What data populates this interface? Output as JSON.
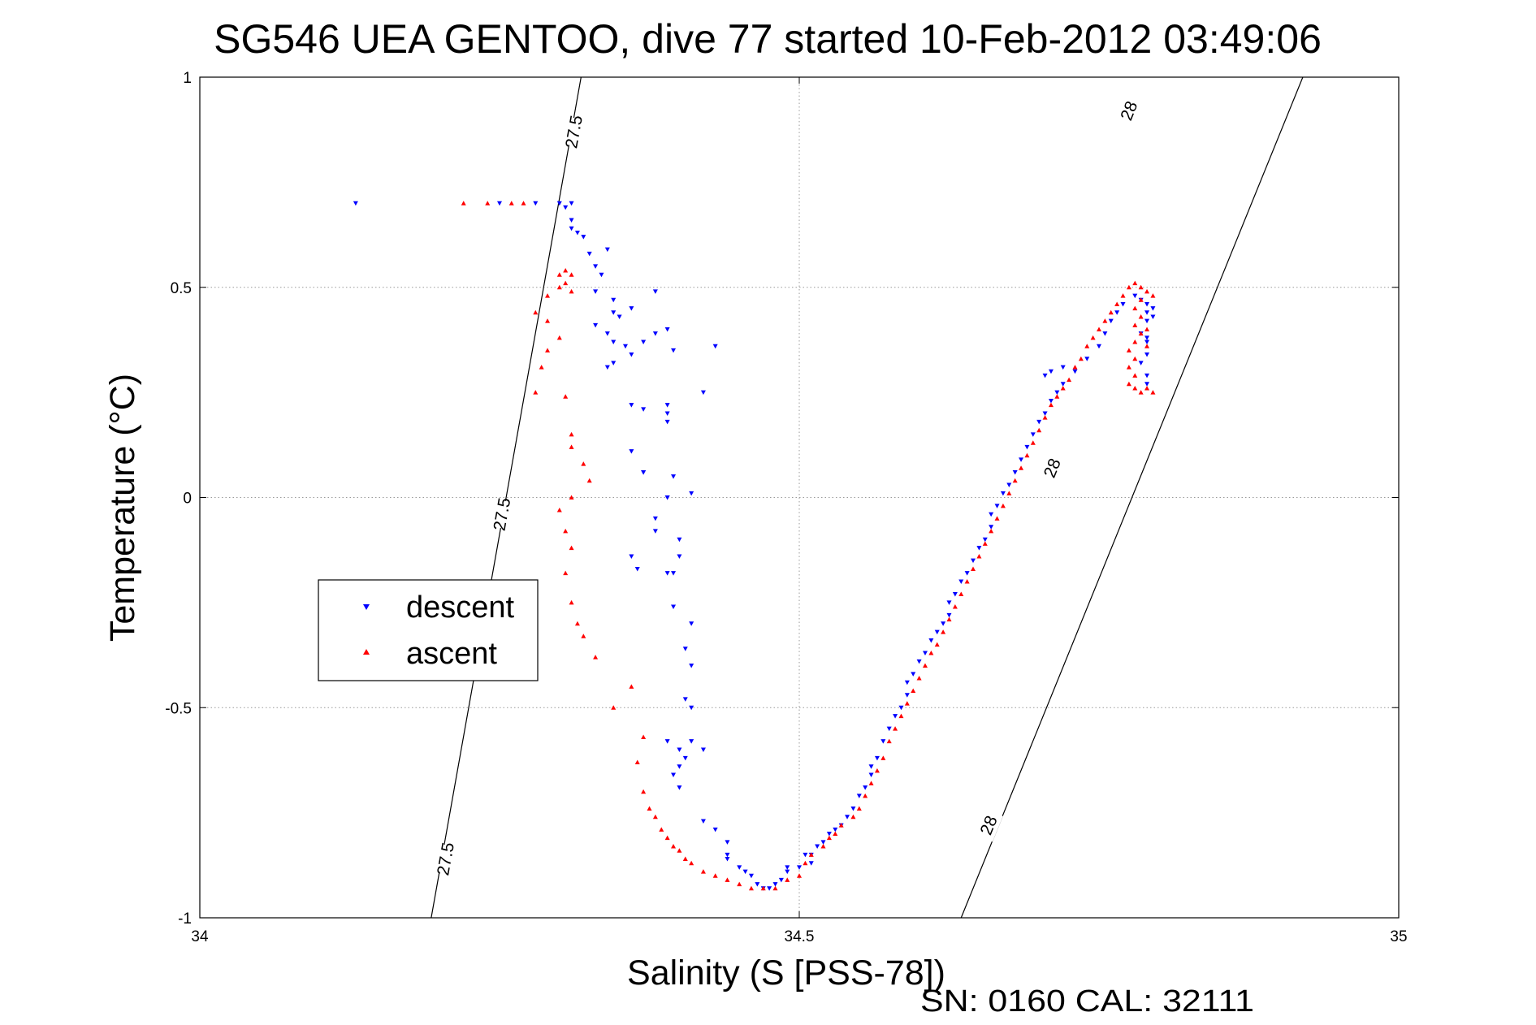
{
  "chart_data": {
    "type": "scatter",
    "title": "SG546 UEA GENTOO, dive 77 started 10-Feb-2012 03:49:06",
    "xlabel": "Salinity (S [PSS-78])",
    "ylabel": "Temperature (°C)",
    "xlim": [
      34,
      35
    ],
    "ylim": [
      -1,
      1
    ],
    "xticks": [
      34,
      34.5,
      35
    ],
    "xtick_labels": [
      "34",
      "34.5",
      "35"
    ],
    "yticks": [
      -1,
      -0.5,
      0,
      0.5,
      1
    ],
    "ytick_labels": [
      "-1",
      "-0.5",
      "0",
      "0.5",
      "1"
    ],
    "grid": true,
    "legend": {
      "position": "left-middle",
      "entries": [
        "descent",
        "ascent"
      ]
    },
    "footer": "SN: 0160  CAL: 32111",
    "isopycnals": [
      {
        "label": "27.5",
        "s_bottom": 34.193,
        "s_top": 34.318,
        "label_positions": [
          [
            34.205,
            -0.86
          ],
          [
            34.252,
            -0.04
          ],
          [
            34.312,
            0.87
          ]
        ]
      },
      {
        "label": "28",
        "s_bottom": 34.635,
        "s_top": 34.92,
        "label_positions": [
          [
            34.658,
            -0.78
          ],
          [
            34.711,
            0.07
          ],
          [
            34.775,
            0.92
          ]
        ]
      }
    ],
    "series": [
      {
        "name": "descent",
        "color": "#0000ff",
        "marker": "triangle-down",
        "points": [
          [
            34.13,
            0.7
          ],
          [
            34.25,
            0.7
          ],
          [
            34.28,
            0.7
          ],
          [
            34.3,
            0.7
          ],
          [
            34.31,
            0.7
          ],
          [
            34.305,
            0.69
          ],
          [
            34.31,
            0.66
          ],
          [
            34.31,
            0.64
          ],
          [
            34.32,
            0.62
          ],
          [
            34.315,
            0.63
          ],
          [
            34.325,
            0.58
          ],
          [
            34.34,
            0.59
          ],
          [
            34.33,
            0.55
          ],
          [
            34.335,
            0.53
          ],
          [
            34.33,
            0.49
          ],
          [
            34.345,
            0.47
          ],
          [
            34.345,
            0.44
          ],
          [
            34.35,
            0.43
          ],
          [
            34.36,
            0.45
          ],
          [
            34.38,
            0.49
          ],
          [
            34.33,
            0.41
          ],
          [
            34.34,
            0.39
          ],
          [
            34.345,
            0.37
          ],
          [
            34.355,
            0.36
          ],
          [
            34.36,
            0.34
          ],
          [
            34.345,
            0.32
          ],
          [
            34.34,
            0.31
          ],
          [
            34.37,
            0.37
          ],
          [
            34.38,
            0.39
          ],
          [
            34.39,
            0.4
          ],
          [
            34.395,
            0.35
          ],
          [
            34.36,
            0.22
          ],
          [
            34.37,
            0.21
          ],
          [
            34.39,
            0.22
          ],
          [
            34.39,
            0.2
          ],
          [
            34.39,
            0.18
          ],
          [
            34.36,
            0.11
          ],
          [
            34.37,
            0.06
          ],
          [
            34.43,
            0.36
          ],
          [
            34.42,
            0.25
          ],
          [
            34.37,
            0.06
          ],
          [
            34.395,
            0.05
          ],
          [
            34.39,
            0.0
          ],
          [
            34.41,
            0.01
          ],
          [
            34.39,
            0.0
          ],
          [
            34.38,
            -0.05
          ],
          [
            34.38,
            -0.08
          ],
          [
            34.4,
            -0.1
          ],
          [
            34.4,
            -0.14
          ],
          [
            34.39,
            -0.18
          ],
          [
            34.36,
            -0.14
          ],
          [
            34.365,
            -0.17
          ],
          [
            34.395,
            -0.18
          ],
          [
            34.395,
            -0.26
          ],
          [
            34.41,
            -0.3
          ],
          [
            34.405,
            -0.36
          ],
          [
            34.41,
            -0.4
          ],
          [
            34.405,
            -0.48
          ],
          [
            34.41,
            -0.5
          ],
          [
            34.39,
            -0.58
          ],
          [
            34.4,
            -0.6
          ],
          [
            34.41,
            -0.58
          ],
          [
            34.42,
            -0.6
          ],
          [
            34.405,
            -0.62
          ],
          [
            34.4,
            -0.64
          ],
          [
            34.395,
            -0.66
          ],
          [
            34.4,
            -0.69
          ],
          [
            34.42,
            -0.77
          ],
          [
            34.43,
            -0.79
          ],
          [
            34.44,
            -0.82
          ],
          [
            34.44,
            -0.85
          ],
          [
            34.44,
            -0.86
          ],
          [
            34.45,
            -0.88
          ],
          [
            34.455,
            -0.89
          ],
          [
            34.46,
            -0.9
          ],
          [
            34.465,
            -0.92
          ],
          [
            34.47,
            -0.93
          ],
          [
            34.475,
            -0.93
          ],
          [
            34.48,
            -0.92
          ],
          [
            34.485,
            -0.91
          ],
          [
            34.49,
            -0.89
          ],
          [
            34.49,
            -0.88
          ],
          [
            34.5,
            -0.88
          ],
          [
            34.51,
            -0.87
          ],
          [
            34.505,
            -0.85
          ],
          [
            34.51,
            -0.85
          ],
          [
            34.515,
            -0.83
          ],
          [
            34.52,
            -0.82
          ],
          [
            34.525,
            -0.8
          ],
          [
            34.53,
            -0.79
          ],
          [
            34.535,
            -0.78
          ],
          [
            34.54,
            -0.76
          ],
          [
            34.545,
            -0.74
          ],
          [
            34.55,
            -0.71
          ],
          [
            34.555,
            -0.69
          ],
          [
            34.56,
            -0.66
          ],
          [
            34.56,
            -0.64
          ],
          [
            34.565,
            -0.62
          ],
          [
            34.57,
            -0.58
          ],
          [
            34.575,
            -0.55
          ],
          [
            34.58,
            -0.52
          ],
          [
            34.585,
            -0.5
          ],
          [
            34.59,
            -0.47
          ],
          [
            34.59,
            -0.44
          ],
          [
            34.595,
            -0.42
          ],
          [
            34.6,
            -0.39
          ],
          [
            34.605,
            -0.37
          ],
          [
            34.61,
            -0.34
          ],
          [
            34.615,
            -0.32
          ],
          [
            34.62,
            -0.3
          ],
          [
            34.625,
            -0.28
          ],
          [
            34.625,
            -0.25
          ],
          [
            34.63,
            -0.23
          ],
          [
            34.635,
            -0.2
          ],
          [
            34.64,
            -0.18
          ],
          [
            34.645,
            -0.15
          ],
          [
            34.65,
            -0.12
          ],
          [
            34.655,
            -0.1
          ],
          [
            34.66,
            -0.07
          ],
          [
            34.66,
            -0.04
          ],
          [
            34.665,
            -0.02
          ],
          [
            34.67,
            0.01
          ],
          [
            34.675,
            0.03
          ],
          [
            34.68,
            0.06
          ],
          [
            34.685,
            0.09
          ],
          [
            34.69,
            0.12
          ],
          [
            34.695,
            0.15
          ],
          [
            34.7,
            0.18
          ],
          [
            34.705,
            0.2
          ],
          [
            34.71,
            0.23
          ],
          [
            34.715,
            0.25
          ],
          [
            34.72,
            0.27
          ],
          [
            34.705,
            0.29
          ],
          [
            34.71,
            0.3
          ],
          [
            34.72,
            0.31
          ],
          [
            34.73,
            0.3
          ],
          [
            34.74,
            0.33
          ],
          [
            34.75,
            0.36
          ],
          [
            34.755,
            0.39
          ],
          [
            34.76,
            0.42
          ],
          [
            34.765,
            0.44
          ],
          [
            34.77,
            0.46
          ],
          [
            34.78,
            0.48
          ],
          [
            34.785,
            0.47
          ],
          [
            34.79,
            0.46
          ],
          [
            34.79,
            0.44
          ],
          [
            34.79,
            0.42
          ],
          [
            34.785,
            0.39
          ],
          [
            34.79,
            0.37
          ],
          [
            34.79,
            0.34
          ],
          [
            34.785,
            0.32
          ],
          [
            34.79,
            0.29
          ],
          [
            34.79,
            0.27
          ],
          [
            34.795,
            0.45
          ],
          [
            34.795,
            0.43
          ],
          [
            34.79,
            0.38
          ]
        ]
      },
      {
        "name": "ascent",
        "color": "#ff0000",
        "marker": "triangle-up",
        "points": [
          [
            34.22,
            0.7
          ],
          [
            34.24,
            0.7
          ],
          [
            34.26,
            0.7
          ],
          [
            34.27,
            0.7
          ],
          [
            34.305,
            0.54
          ],
          [
            34.3,
            0.53
          ],
          [
            34.31,
            0.53
          ],
          [
            34.305,
            0.51
          ],
          [
            34.3,
            0.5
          ],
          [
            34.31,
            0.49
          ],
          [
            34.29,
            0.48
          ],
          [
            34.28,
            0.44
          ],
          [
            34.29,
            0.42
          ],
          [
            34.3,
            0.38
          ],
          [
            34.29,
            0.35
          ],
          [
            34.285,
            0.31
          ],
          [
            34.28,
            0.25
          ],
          [
            34.305,
            0.24
          ],
          [
            34.31,
            0.15
          ],
          [
            34.31,
            0.12
          ],
          [
            34.32,
            0.08
          ],
          [
            34.325,
            0.04
          ],
          [
            34.31,
            0.0
          ],
          [
            34.3,
            -0.03
          ],
          [
            34.305,
            -0.08
          ],
          [
            34.31,
            -0.12
          ],
          [
            34.305,
            -0.18
          ],
          [
            34.31,
            -0.25
          ],
          [
            34.315,
            -0.3
          ],
          [
            34.32,
            -0.33
          ],
          [
            34.33,
            -0.38
          ],
          [
            34.36,
            -0.45
          ],
          [
            34.345,
            -0.5
          ],
          [
            34.37,
            -0.57
          ],
          [
            34.365,
            -0.63
          ],
          [
            34.37,
            -0.7
          ],
          [
            34.375,
            -0.74
          ],
          [
            34.38,
            -0.76
          ],
          [
            34.385,
            -0.79
          ],
          [
            34.39,
            -0.81
          ],
          [
            34.395,
            -0.83
          ],
          [
            34.4,
            -0.84
          ],
          [
            34.405,
            -0.86
          ],
          [
            34.41,
            -0.87
          ],
          [
            34.42,
            -0.89
          ],
          [
            34.43,
            -0.9
          ],
          [
            34.44,
            -0.91
          ],
          [
            34.45,
            -0.92
          ],
          [
            34.46,
            -0.93
          ],
          [
            34.47,
            -0.93
          ],
          [
            34.48,
            -0.93
          ],
          [
            34.49,
            -0.91
          ],
          [
            34.5,
            -0.9
          ],
          [
            34.505,
            -0.87
          ],
          [
            34.51,
            -0.85
          ],
          [
            34.52,
            -0.83
          ],
          [
            34.525,
            -0.81
          ],
          [
            34.53,
            -0.8
          ],
          [
            34.535,
            -0.78
          ],
          [
            34.545,
            -0.76
          ],
          [
            34.55,
            -0.74
          ],
          [
            34.555,
            -0.71
          ],
          [
            34.56,
            -0.68
          ],
          [
            34.565,
            -0.65
          ],
          [
            34.57,
            -0.62
          ],
          [
            34.575,
            -0.58
          ],
          [
            34.58,
            -0.55
          ],
          [
            34.585,
            -0.52
          ],
          [
            34.59,
            -0.49
          ],
          [
            34.595,
            -0.46
          ],
          [
            34.6,
            -0.43
          ],
          [
            34.605,
            -0.4
          ],
          [
            34.61,
            -0.37
          ],
          [
            34.615,
            -0.35
          ],
          [
            34.62,
            -0.32
          ],
          [
            34.625,
            -0.29
          ],
          [
            34.63,
            -0.26
          ],
          [
            34.635,
            -0.23
          ],
          [
            34.64,
            -0.2
          ],
          [
            34.645,
            -0.17
          ],
          [
            34.65,
            -0.14
          ],
          [
            34.655,
            -0.11
          ],
          [
            34.66,
            -0.08
          ],
          [
            34.665,
            -0.05
          ],
          [
            34.67,
            -0.02
          ],
          [
            34.675,
            0.01
          ],
          [
            34.68,
            0.04
          ],
          [
            34.685,
            0.07
          ],
          [
            34.69,
            0.1
          ],
          [
            34.695,
            0.13
          ],
          [
            34.7,
            0.16
          ],
          [
            34.705,
            0.19
          ],
          [
            34.71,
            0.22
          ],
          [
            34.715,
            0.24
          ],
          [
            34.72,
            0.26
          ],
          [
            34.725,
            0.28
          ],
          [
            34.73,
            0.31
          ],
          [
            34.735,
            0.33
          ],
          [
            34.74,
            0.36
          ],
          [
            34.745,
            0.38
          ],
          [
            34.75,
            0.4
          ],
          [
            34.755,
            0.42
          ],
          [
            34.76,
            0.44
          ],
          [
            34.765,
            0.46
          ],
          [
            34.77,
            0.48
          ],
          [
            34.775,
            0.5
          ],
          [
            34.78,
            0.51
          ],
          [
            34.785,
            0.5
          ],
          [
            34.79,
            0.49
          ],
          [
            34.785,
            0.47
          ],
          [
            34.78,
            0.45
          ],
          [
            34.785,
            0.43
          ],
          [
            34.78,
            0.41
          ],
          [
            34.785,
            0.39
          ],
          [
            34.78,
            0.37
          ],
          [
            34.775,
            0.35
          ],
          [
            34.78,
            0.33
          ],
          [
            34.775,
            0.31
          ],
          [
            34.78,
            0.29
          ],
          [
            34.775,
            0.27
          ],
          [
            34.78,
            0.26
          ],
          [
            34.785,
            0.25
          ],
          [
            34.79,
            0.26
          ],
          [
            34.795,
            0.25
          ],
          [
            34.795,
            0.48
          ],
          [
            34.79,
            0.4
          ],
          [
            34.79,
            0.36
          ]
        ]
      }
    ]
  }
}
